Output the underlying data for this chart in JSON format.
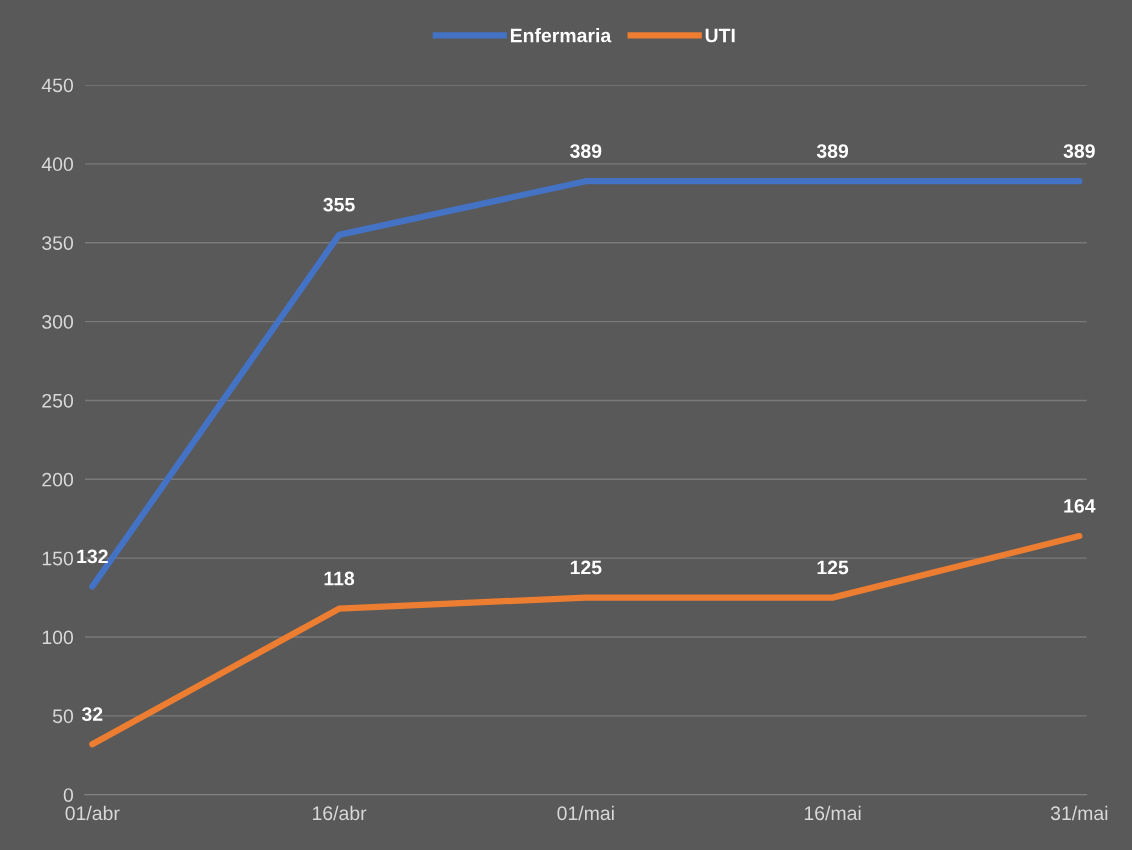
{
  "chart_data": {
    "type": "line",
    "categories": [
      "01/abr",
      "16/abr",
      "01/mai",
      "16/mai",
      "31/mai"
    ],
    "series": [
      {
        "name": "Enfermaria",
        "color": "#4472c4",
        "values": [
          132,
          355,
          389,
          389,
          389
        ]
      },
      {
        "name": "UTI",
        "color": "#ed7d31",
        "values": [
          32,
          118,
          125,
          125,
          164
        ]
      }
    ],
    "ylim": [
      0,
      450
    ],
    "yticks": [
      0,
      50,
      100,
      150,
      200,
      250,
      300,
      350,
      400,
      450
    ],
    "grid": "y",
    "legend": "top",
    "data_labels": true,
    "marker": "none",
    "line_style": "solid"
  }
}
